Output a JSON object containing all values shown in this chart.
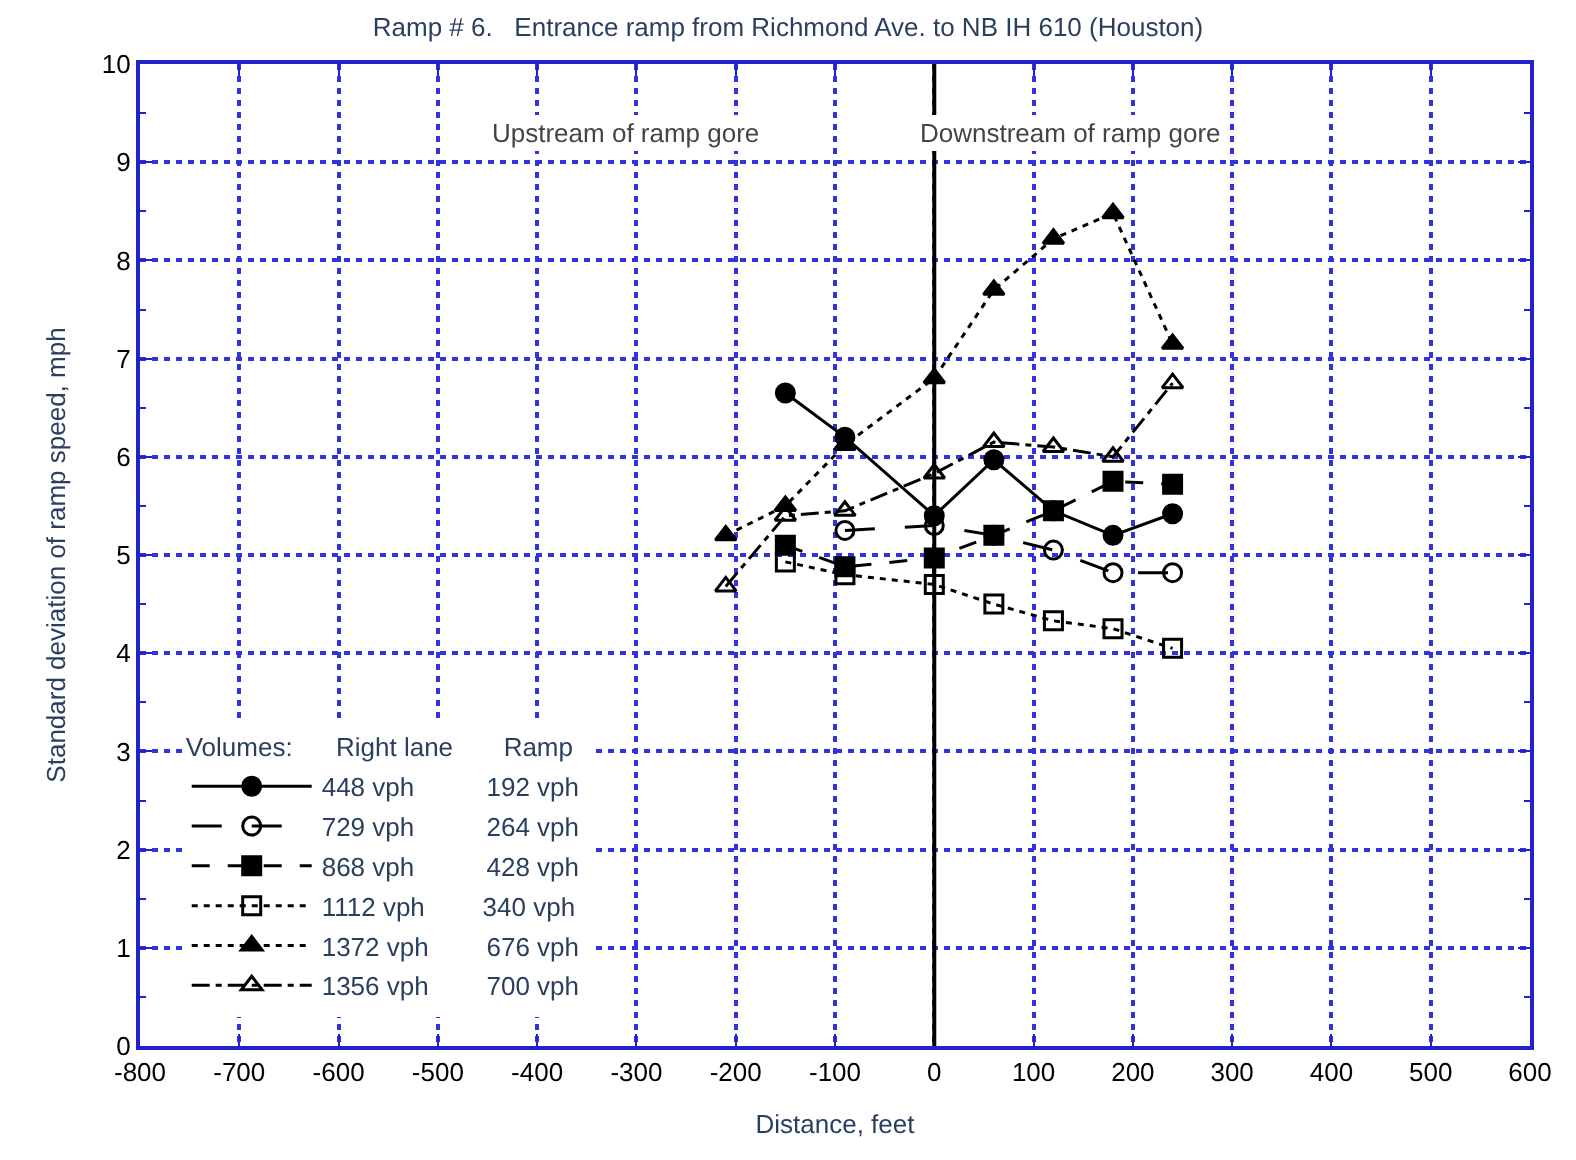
{
  "chart_data": {
    "type": "line",
    "title": "Ramp # 6.   Entrance ramp from Richmond Ave. to NB IH 610 (Houston)",
    "xlabel": "Distance, feet",
    "ylabel": "Standard deviation of ramp speed, mph",
    "xlim": [
      -800,
      600
    ],
    "xticks": [
      -800,
      -700,
      -600,
      -500,
      -400,
      -300,
      -200,
      -100,
      0,
      100,
      200,
      300,
      400,
      500,
      600
    ],
    "ylim": [
      0,
      10
    ],
    "yticks": [
      0,
      1,
      2,
      3,
      4,
      5,
      6,
      7,
      8,
      9,
      10
    ],
    "grid": true,
    "legend": "bottom left",
    "legend_title": "Volumes:      Right lane       Ramp",
    "ref_lines": [
      {
        "axis": "x",
        "value": 0,
        "color": "#000000"
      }
    ],
    "annotations": [
      "Upstream of ramp gore",
      "Downstream of ramp gore"
    ],
    "series": [
      {
        "name": "448 vph          192 vph",
        "color": "#000000",
        "marker": "circle",
        "line_style": "solid",
        "x": [
          -150,
          -90,
          0,
          60,
          120,
          180,
          240
        ],
        "values": [
          6.65,
          6.2,
          5.4,
          5.97,
          5.45,
          5.2,
          5.42
        ]
      },
      {
        "name": "729 vph          264 vph",
        "color": "#000000",
        "marker": "circle-open",
        "line_style": "longdash",
        "x": [
          -90,
          0,
          60,
          120,
          180,
          240
        ],
        "values": [
          5.25,
          5.3,
          5.2,
          5.05,
          4.82,
          4.82
        ]
      },
      {
        "name": "868 vph          428 vph",
        "color": "#000000",
        "marker": "square",
        "line_style": "dashed",
        "x": [
          -150,
          -90,
          0,
          60,
          120,
          180,
          240
        ],
        "values": [
          5.1,
          4.88,
          4.97,
          5.2,
          5.45,
          5.75,
          5.72
        ]
      },
      {
        "name": "1112 vph        340 vph",
        "color": "#000000",
        "marker": "square-open",
        "line_style": "dotted",
        "x": [
          -150,
          -90,
          0,
          60,
          120,
          180,
          240
        ],
        "values": [
          4.93,
          4.8,
          4.7,
          4.5,
          4.33,
          4.25,
          4.05
        ]
      },
      {
        "name": "1372 vph        676 vph",
        "color": "#000000",
        "marker": "triangle-up",
        "line_style": "dotted",
        "x": [
          -210,
          -150,
          -90,
          0,
          60,
          120,
          180,
          240
        ],
        "values": [
          5.2,
          5.5,
          6.12,
          6.8,
          7.7,
          8.22,
          8.48,
          7.15
        ]
      },
      {
        "name": "1356 vph        700 vph",
        "color": "#000000",
        "marker": "triangle-up-open",
        "line_style": "dashdot",
        "x": [
          -210,
          -150,
          -90,
          0,
          60,
          120,
          180,
          240
        ],
        "values": [
          4.68,
          5.4,
          5.45,
          5.83,
          6.15,
          6.1,
          6.0,
          6.75
        ]
      }
    ]
  }
}
